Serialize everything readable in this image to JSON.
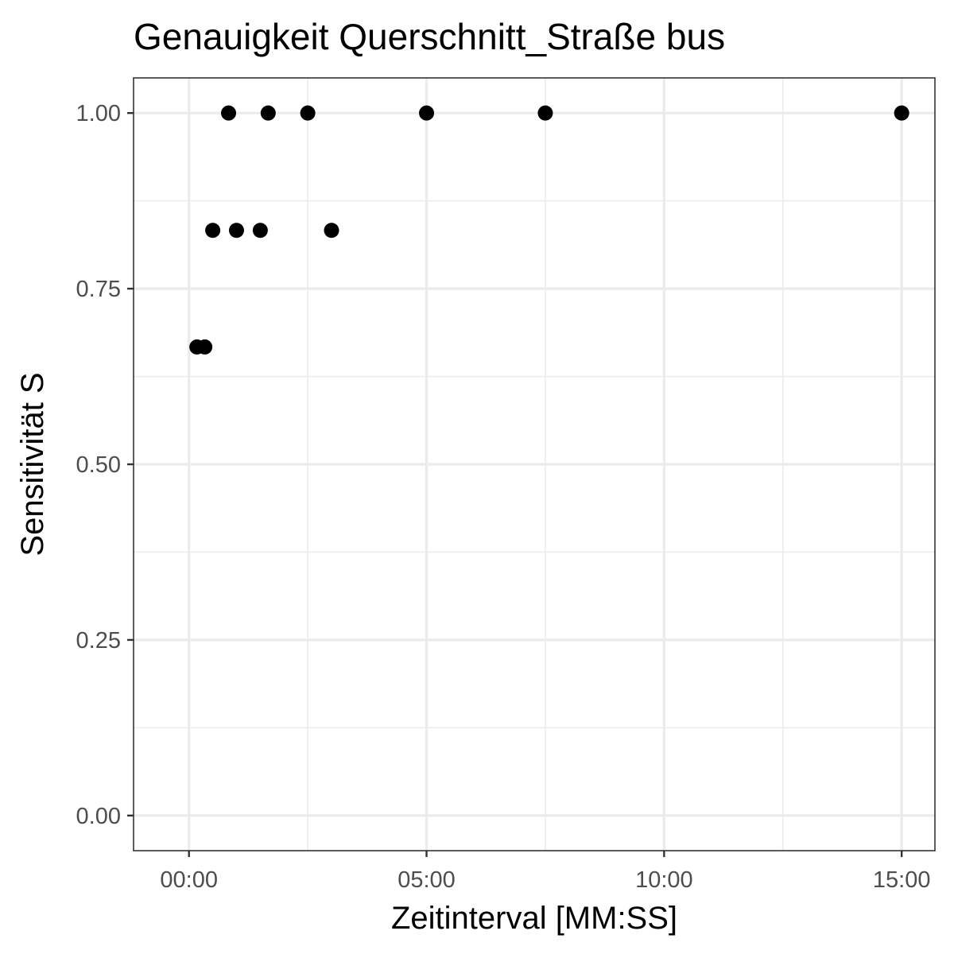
{
  "chart_data": {
    "type": "scatter",
    "title": "Genauigkeit Querschnitt_Straße bus",
    "xlabel": "Zeitinterval [MM:SS]",
    "ylabel": "Sensitivität S",
    "x_unit": "seconds",
    "xlim": [
      -70,
      942
    ],
    "ylim": [
      -0.05,
      1.05
    ],
    "x_ticks": [
      {
        "value": 0,
        "label": "00:00"
      },
      {
        "value": 300,
        "label": "05:00"
      },
      {
        "value": 600,
        "label": "10:00"
      },
      {
        "value": 900,
        "label": "15:00"
      }
    ],
    "x_minor_ticks": [
      150,
      450,
      750
    ],
    "y_ticks": [
      {
        "value": 0,
        "label": "0.00"
      },
      {
        "value": 0.25,
        "label": "0.25"
      },
      {
        "value": 0.5,
        "label": "0.50"
      },
      {
        "value": 0.75,
        "label": "0.75"
      },
      {
        "value": 1,
        "label": "1.00"
      }
    ],
    "y_minor_ticks": [
      0.125,
      0.375,
      0.625,
      0.875
    ],
    "grid": true,
    "legend": "none",
    "colors": {
      "points": "#000000",
      "grid": "#ebebeb",
      "border": "#333333",
      "tick_text": "#4d4d4d"
    },
    "points": [
      {
        "x": 10,
        "y": 0.667
      },
      {
        "x": 20,
        "y": 0.667
      },
      {
        "x": 30,
        "y": 0.833
      },
      {
        "x": 50,
        "y": 1.0
      },
      {
        "x": 60,
        "y": 0.833
      },
      {
        "x": 90,
        "y": 0.833
      },
      {
        "x": 100,
        "y": 1.0
      },
      {
        "x": 150,
        "y": 1.0
      },
      {
        "x": 180,
        "y": 0.833
      },
      {
        "x": 300,
        "y": 1.0
      },
      {
        "x": 450,
        "y": 1.0
      },
      {
        "x": 900,
        "y": 1.0
      }
    ]
  }
}
